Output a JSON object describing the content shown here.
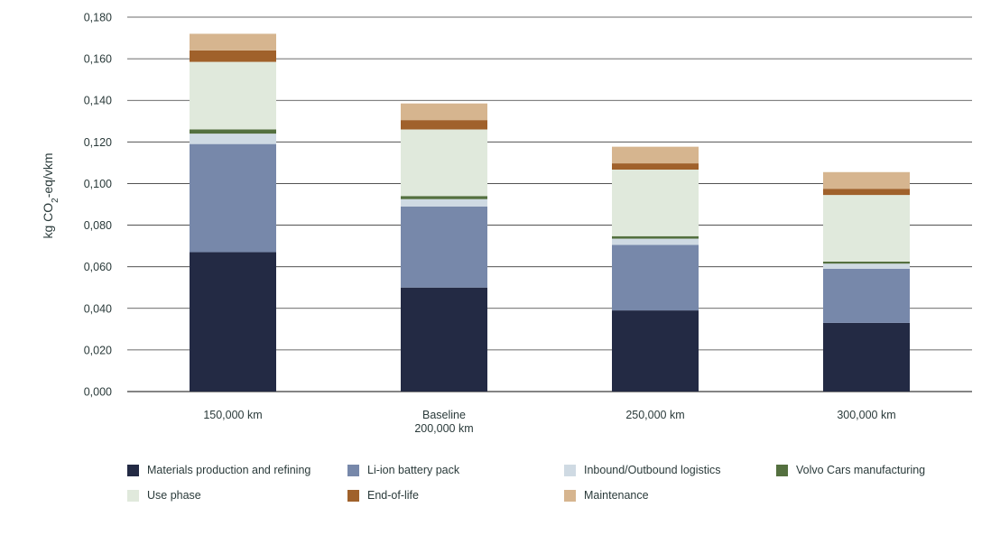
{
  "chart_data": {
    "type": "bar",
    "stacked": true,
    "title": "",
    "xlabel": "",
    "ylabel": "kg CO2-eq/vkm",
    "ylabel_parts": {
      "pre": "kg CO",
      "sub": "2",
      "post": "-eq/vkm"
    },
    "ylim": [
      0,
      0.18
    ],
    "yticks": [
      "0,000",
      "0,020",
      "0,040",
      "0,060",
      "0,080",
      "0,100",
      "0,120",
      "0,140",
      "0,160",
      "0,180"
    ],
    "ytick_values": [
      0,
      0.02,
      0.04,
      0.06,
      0.08,
      0.1,
      0.12,
      0.14,
      0.16,
      0.18
    ],
    "grid": true,
    "legend_position": "bottom",
    "categories": [
      [
        "150,000 km"
      ],
      [
        "Baseline",
        "200,000 km"
      ],
      [
        "250,000 km"
      ],
      [
        "300,000 km"
      ]
    ],
    "series": [
      {
        "name": "Materials production and refining",
        "color": "#232a44",
        "values": [
          0.067,
          0.05,
          0.039,
          0.033
        ]
      },
      {
        "name": "Li-ion battery pack",
        "color": "#7788aa",
        "values": [
          0.052,
          0.039,
          0.0315,
          0.026
        ]
      },
      {
        "name": "Inbound/Outbound logistics",
        "color": "#cfdae3",
        "values": [
          0.005,
          0.0035,
          0.003,
          0.0025
        ]
      },
      {
        "name": "Volvo Cars manufacturing",
        "color": "#54703f",
        "values": [
          0.002,
          0.0015,
          0.0012,
          0.001
        ]
      },
      {
        "name": "Use phase",
        "color": "#e0e9dc",
        "values": [
          0.0325,
          0.032,
          0.032,
          0.032
        ]
      },
      {
        "name": "End-of-life",
        "color": "#a0612b",
        "values": [
          0.0055,
          0.0045,
          0.003,
          0.003
        ]
      },
      {
        "name": "Maintenance",
        "color": "#d6b58f",
        "values": [
          0.008,
          0.008,
          0.008,
          0.008
        ]
      }
    ]
  }
}
